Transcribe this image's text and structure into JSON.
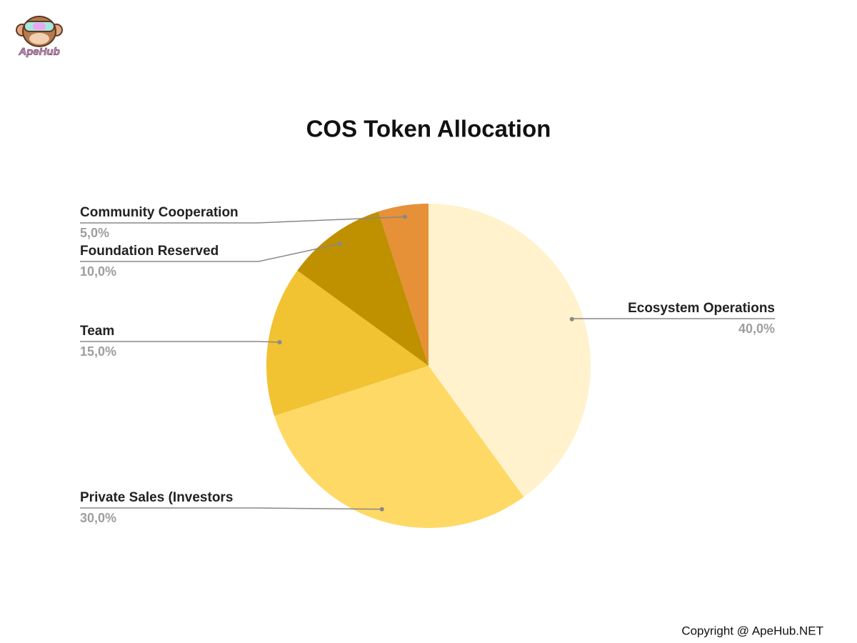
{
  "logo_text": "ApeHub",
  "copyright": "Copyright @ ApeHub.NET",
  "chart_data": {
    "type": "pie",
    "title": "COS Token Allocation",
    "categories": [
      "Ecosystem Operations",
      "Private Sales (Investors",
      "Team",
      "Foundation Reserved",
      "Community Cooperation"
    ],
    "values": [
      40,
      30,
      15,
      10,
      5
    ],
    "value_labels": [
      "40,0%",
      "30,0%",
      "15,0%",
      "10,0%",
      "5,0%"
    ],
    "colors": [
      "#fff2cc",
      "#ffd966",
      "#f1c232",
      "#bf9000",
      "#e69138"
    ]
  }
}
